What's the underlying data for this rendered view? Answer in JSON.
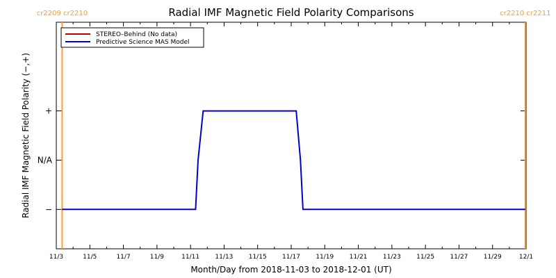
{
  "chart_data": {
    "type": "line",
    "title": "Radial IMF Magnetic Field Polarity Comparisons",
    "xlabel": "Month/Day from 2018-11-03 to 2018-12-01 (UT)",
    "ylabel": "Radial IMF Magnetic Field Polarity (−,+)",
    "xlim": [
      0,
      28
    ],
    "x_tick_values": [
      0,
      2,
      4,
      6,
      8,
      10,
      12,
      14,
      16,
      18,
      20,
      22,
      24,
      26,
      28
    ],
    "x_tick_labels": [
      "11/3",
      "11/5",
      "11/7",
      "11/9",
      "11/11",
      "11/13",
      "11/15",
      "11/17",
      "11/19",
      "11/21",
      "11/23",
      "11/25",
      "11/27",
      "11/29",
      "12/1"
    ],
    "ylim": [
      -1.8,
      2.8
    ],
    "y_ticks": [
      {
        "value": 1,
        "label": "+"
      },
      {
        "value": 0,
        "label": "N/A"
      },
      {
        "value": -1,
        "label": "−"
      }
    ],
    "legend_position": "top-left",
    "series": [
      {
        "name": "STEREO–Behind (No data)",
        "color": "#c00000",
        "x": [],
        "y": []
      },
      {
        "name": "Predictive Science MAS Model",
        "color": "#0000cc",
        "x": [
          0.35,
          8.3,
          8.45,
          8.75,
          10.5,
          14.3,
          14.55,
          14.7,
          16.0,
          24.0,
          27.95
        ],
        "y": [
          -1,
          -1,
          0,
          1,
          1,
          1,
          0,
          -1,
          -1,
          -1,
          -1
        ]
      }
    ],
    "carrington_markers": [
      {
        "x": 0.35,
        "label": "cr2209 cr2210",
        "color": "#f5a030"
      },
      {
        "x": 27.95,
        "label": "cr2210 cr2211",
        "color": "#f5a030"
      }
    ]
  }
}
